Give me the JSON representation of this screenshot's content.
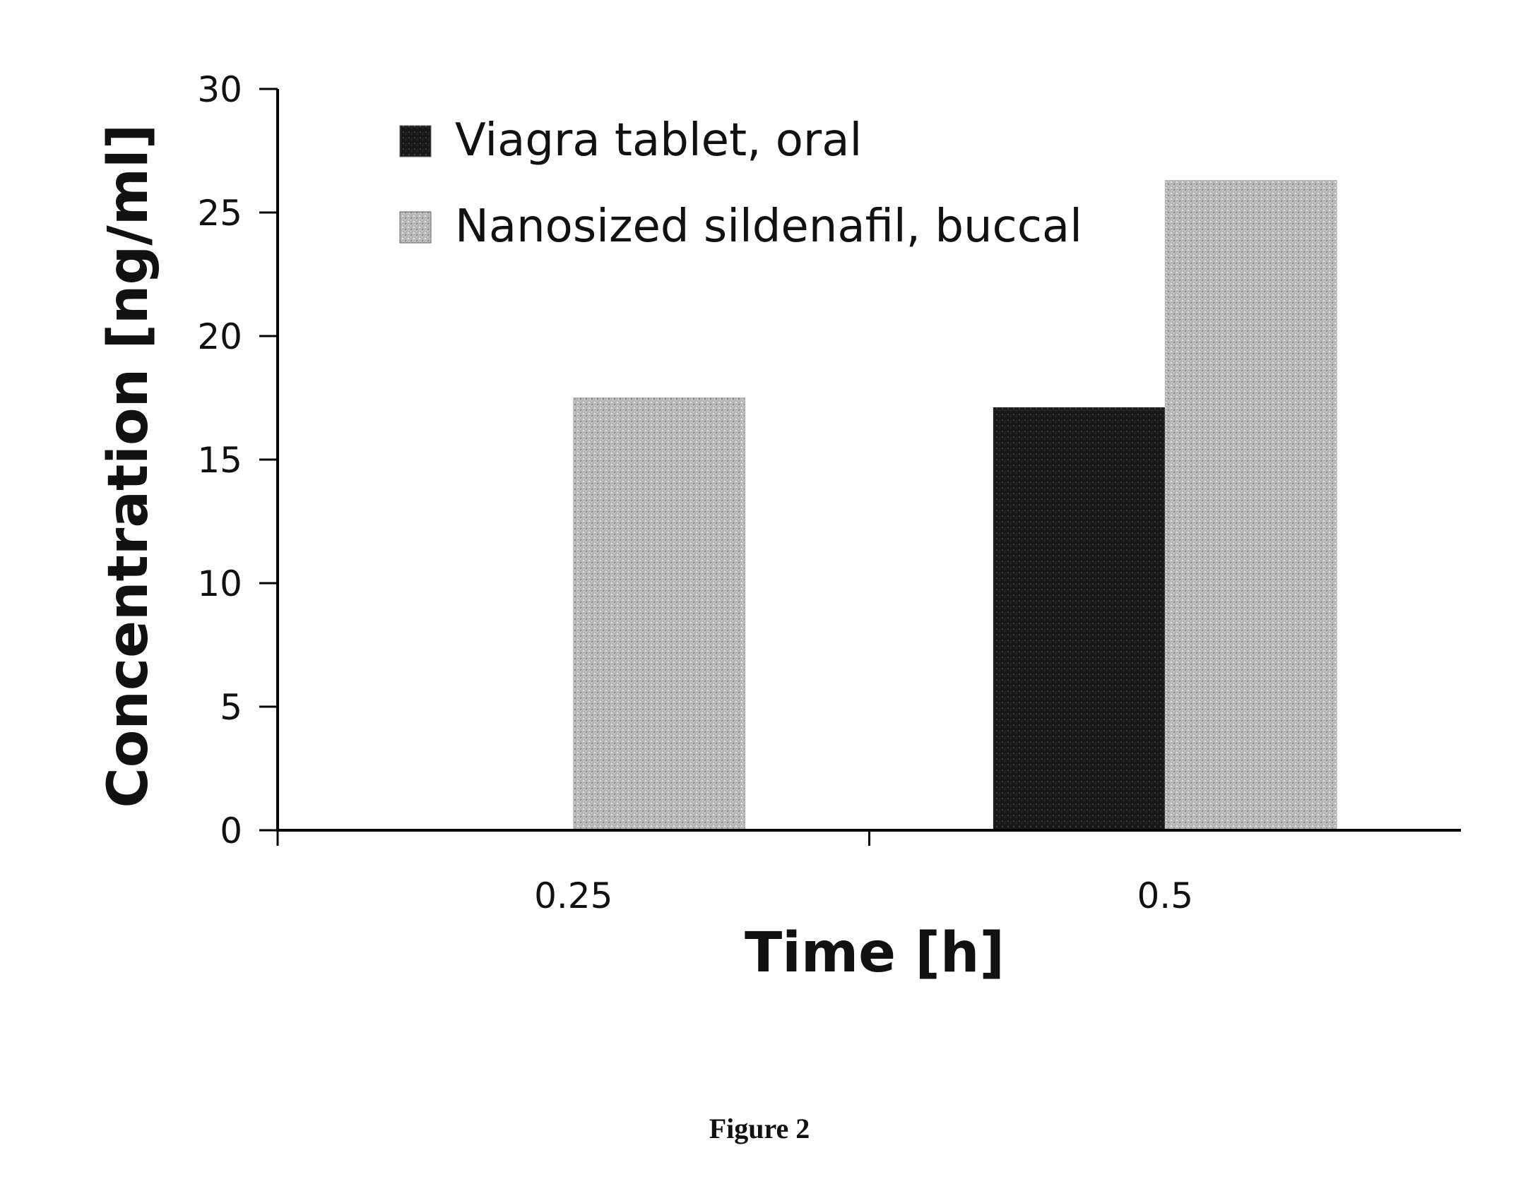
{
  "chart_data": {
    "type": "bar",
    "categories": [
      "0.25",
      "0.5"
    ],
    "series": [
      {
        "name": "Viagra tablet, oral",
        "values": [
          0,
          17.1
        ],
        "color": "#151515"
      },
      {
        "name": "Nanosized sildenafil, buccal",
        "values": [
          17.5,
          26.3
        ],
        "color": "#b5b5b5"
      }
    ],
    "xlabel": "Time [h]",
    "ylabel": "Concentration [ng/ml]",
    "ylim": [
      0,
      30
    ],
    "yticks": [
      "0",
      "5",
      "10",
      "15",
      "20",
      "25",
      "30"
    ],
    "grid": false,
    "legend_position": "top"
  },
  "caption": "Figure 2"
}
